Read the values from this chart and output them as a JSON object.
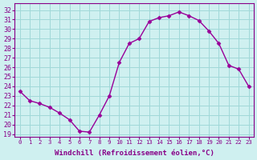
{
  "x": [
    0,
    1,
    2,
    3,
    4,
    5,
    6,
    7,
    8,
    9,
    10,
    11,
    12,
    13,
    14,
    15,
    16,
    17,
    18,
    19,
    20,
    21,
    22,
    23
  ],
  "y": [
    23.5,
    22.5,
    22.2,
    21.8,
    21.2,
    20.5,
    19.3,
    19.2,
    21.0,
    23.0,
    26.5,
    28.5,
    29.0,
    30.8,
    31.2,
    31.4,
    31.8,
    31.4,
    30.9,
    29.8,
    28.5,
    26.2,
    25.8,
    24.0
  ],
  "line_color": "#990099",
  "marker": "D",
  "marker_size": 2.5,
  "bg_color": "#cff0f0",
  "grid_color": "#a0d8d8",
  "xlabel": "Windchill (Refroidissement éolien,°C)",
  "ylabel_ticks": [
    19,
    20,
    21,
    22,
    23,
    24,
    25,
    26,
    27,
    28,
    29,
    30,
    31,
    32
  ],
  "ylim": [
    18.7,
    32.7
  ],
  "xlim": [
    -0.5,
    23.5
  ],
  "xticks": [
    0,
    1,
    2,
    3,
    4,
    5,
    6,
    7,
    8,
    9,
    10,
    11,
    12,
    13,
    14,
    15,
    16,
    17,
    18,
    19,
    20,
    21,
    22,
    23
  ],
  "tick_color": "#880088",
  "xlabel_fontsize": 6.5,
  "ytick_fontsize": 6,
  "xtick_fontsize": 5.2,
  "spine_color": "#880088",
  "linewidth": 1.0
}
